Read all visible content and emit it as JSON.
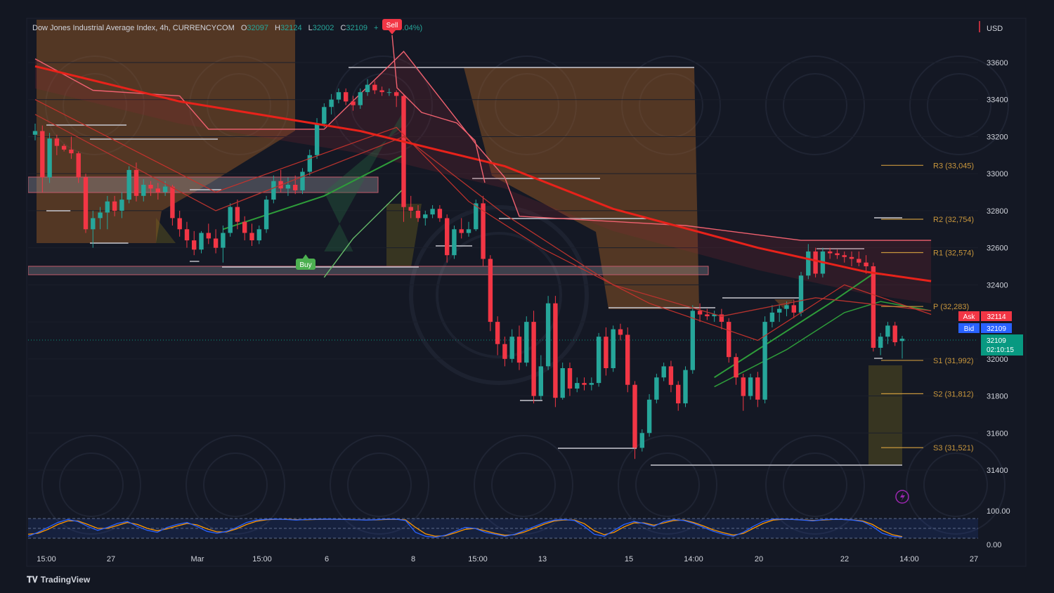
{
  "header": {
    "symbol_text": "Dow Jones Industrial Average Index, 4h, CURRENCYCOM",
    "open_label": "O",
    "open_value": "32097",
    "high_label": "H",
    "high_value": "32124",
    "low_label": "L",
    "low_value": "32002",
    "close_label": "C",
    "close_value": "32109",
    "change_text": "+",
    "change_pct": ".04%)"
  },
  "price_axis": {
    "currency": "USD",
    "tick_labels": [
      "33600",
      "33400",
      "33200",
      "33000",
      "32800",
      "32600",
      "32400",
      "32000",
      "31800",
      "31600",
      "31400"
    ]
  },
  "time_axis": {
    "labels": [
      "15:00",
      "27",
      "Mar",
      "15:00",
      "6",
      "8",
      "15:00",
      "13",
      "15",
      "14:00",
      "20",
      "22",
      "14:00",
      "27"
    ]
  },
  "price_tags": {
    "ask_label": "Ask",
    "ask_value": "32114",
    "bid_label": "Bid",
    "bid_value": "32109",
    "last_value": "32109",
    "countdown": "02:10:15"
  },
  "pivots": [
    {
      "label": "R3 (33,045)",
      "value": 33045
    },
    {
      "label": "R2 (32,754)",
      "value": 32754
    },
    {
      "label": "R1 (32,574)",
      "value": 32574
    },
    {
      "label": "P (32,283)",
      "value": 32283
    },
    {
      "label": "S1 (31,992)",
      "value": 31992
    },
    {
      "label": "S2 (31,812)",
      "value": 31812
    },
    {
      "label": "S3 (31,521)",
      "value": 31521
    }
  ],
  "signals": {
    "sell_label": "Sell",
    "buy_label": "Buy"
  },
  "oscillator": {
    "top_label": "100.00",
    "bottom_label": "0.00"
  },
  "branding": {
    "name": "TradingView"
  },
  "colors": {
    "up": "#26a69a",
    "down": "#f23645",
    "ema_red": "#e8221a",
    "pivot": "#c8963c",
    "bg": "#131722"
  },
  "chart_data": {
    "type": "candlestick",
    "ylim": [
      31300,
      33700
    ],
    "candles": [
      [
        33210,
        33270,
        33180,
        33230
      ],
      [
        33230,
        33260,
        32900,
        32980
      ],
      [
        32980,
        33220,
        32950,
        33190
      ],
      [
        33190,
        33210,
        33100,
        33150
      ],
      [
        33150,
        33160,
        33120,
        33130
      ],
      [
        33130,
        33200,
        33080,
        33110
      ],
      [
        33110,
        33120,
        32950,
        32980
      ],
      [
        32980,
        33000,
        32680,
        32700
      ],
      [
        32700,
        32800,
        32600,
        32760
      ],
      [
        32760,
        32820,
        32700,
        32790
      ],
      [
        32790,
        32880,
        32700,
        32850
      ],
      [
        32850,
        32880,
        32770,
        32800
      ],
      [
        32800,
        32900,
        32760,
        32860
      ],
      [
        32860,
        33040,
        32840,
        33020
      ],
      [
        33020,
        33060,
        32850,
        32880
      ],
      [
        32880,
        32970,
        32850,
        32940
      ],
      [
        32940,
        32960,
        32880,
        32920
      ],
      [
        32920,
        32950,
        32860,
        32900
      ],
      [
        32900,
        32960,
        32880,
        32930
      ],
      [
        32930,
        32940,
        32720,
        32760
      ],
      [
        32760,
        32800,
        32660,
        32700
      ],
      [
        32700,
        32740,
        32600,
        32640
      ],
      [
        32640,
        32690,
        32560,
        32590
      ],
      [
        32590,
        32690,
        32570,
        32680
      ],
      [
        32680,
        32730,
        32620,
        32650
      ],
      [
        32650,
        32700,
        32570,
        32600
      ],
      [
        32600,
        32720,
        32520,
        32680
      ],
      [
        32680,
        32840,
        32660,
        32820
      ],
      [
        32820,
        32860,
        32700,
        32740
      ],
      [
        32740,
        32770,
        32640,
        32680
      ],
      [
        32680,
        32730,
        32610,
        32640
      ],
      [
        32640,
        32720,
        32620,
        32700
      ],
      [
        32700,
        32880,
        32680,
        32860
      ],
      [
        32860,
        32990,
        32840,
        32960
      ],
      [
        32960,
        33020,
        32900,
        32920
      ],
      [
        32920,
        32980,
        32880,
        32940
      ],
      [
        32940,
        32990,
        32890,
        32910
      ],
      [
        32910,
        33030,
        32890,
        33010
      ],
      [
        33010,
        33130,
        32990,
        33100
      ],
      [
        33100,
        33300,
        33080,
        33270
      ],
      [
        33270,
        33380,
        33250,
        33360
      ],
      [
        33360,
        33430,
        33320,
        33400
      ],
      [
        33400,
        33460,
        33380,
        33440
      ],
      [
        33440,
        33460,
        33370,
        33390
      ],
      [
        33390,
        33420,
        33340,
        33370
      ],
      [
        33370,
        33460,
        33350,
        33440
      ],
      [
        33440,
        33510,
        33420,
        33480
      ],
      [
        33480,
        33500,
        33430,
        33450
      ],
      [
        33450,
        33470,
        33420,
        33440
      ],
      [
        33440,
        33460,
        33420,
        33440
      ],
      [
        33440,
        33450,
        33360,
        33420
      ],
      [
        33420,
        33430,
        32740,
        32820
      ],
      [
        32820,
        32880,
        32760,
        32800
      ],
      [
        32800,
        32830,
        32740,
        32760
      ],
      [
        32760,
        32800,
        32720,
        32780
      ],
      [
        32780,
        32830,
        32760,
        32810
      ],
      [
        32810,
        32830,
        32740,
        32760
      ],
      [
        32760,
        32780,
        32520,
        32560
      ],
      [
        32560,
        32720,
        32540,
        32700
      ],
      [
        32700,
        32760,
        32650,
        32680
      ],
      [
        32680,
        32740,
        32660,
        32700
      ],
      [
        32700,
        32860,
        32690,
        32840
      ],
      [
        32840,
        32880,
        32500,
        32540
      ],
      [
        32540,
        32560,
        32150,
        32200
      ],
      [
        32200,
        32230,
        32020,
        32080
      ],
      [
        32080,
        32120,
        31960,
        32000
      ],
      [
        32000,
        32160,
        31980,
        32120
      ],
      [
        32120,
        32180,
        31940,
        31980
      ],
      [
        31980,
        32230,
        31960,
        32200
      ],
      [
        32200,
        32260,
        31760,
        31800
      ],
      [
        31800,
        32020,
        31780,
        31960
      ],
      [
        31960,
        32340,
        31940,
        32300
      ],
      [
        32300,
        32340,
        31740,
        31790
      ],
      [
        31790,
        31980,
        31780,
        31950
      ],
      [
        31950,
        31980,
        31800,
        31840
      ],
      [
        31840,
        31900,
        31820,
        31870
      ],
      [
        31870,
        31900,
        31830,
        31860
      ],
      [
        31860,
        31900,
        31830,
        31870
      ],
      [
        31870,
        32140,
        31850,
        32120
      ],
      [
        32120,
        32170,
        31910,
        31950
      ],
      [
        31950,
        32180,
        31930,
        32160
      ],
      [
        32160,
        32190,
        32100,
        32130
      ],
      [
        32130,
        32170,
        31820,
        31860
      ],
      [
        31860,
        31880,
        31460,
        31520
      ],
      [
        31520,
        31620,
        31500,
        31600
      ],
      [
        31600,
        31810,
        31580,
        31780
      ],
      [
        31780,
        31920,
        31760,
        31900
      ],
      [
        31900,
        31980,
        31880,
        31960
      ],
      [
        31960,
        31990,
        31820,
        31860
      ],
      [
        31860,
        31880,
        31720,
        31760
      ],
      [
        31760,
        31960,
        31740,
        31940
      ],
      [
        31940,
        32290,
        31920,
        32260
      ],
      [
        32260,
        32300,
        32200,
        32240
      ],
      [
        32240,
        32270,
        32210,
        32230
      ],
      [
        32230,
        32260,
        32200,
        32240
      ],
      [
        32240,
        32270,
        32160,
        32200
      ],
      [
        32200,
        32220,
        31980,
        32010
      ],
      [
        32010,
        32030,
        31860,
        31900
      ],
      [
        31900,
        31920,
        31720,
        31800
      ],
      [
        31800,
        31920,
        31780,
        31900
      ],
      [
        31900,
        31930,
        31740,
        31780
      ],
      [
        31780,
        32230,
        31760,
        32200
      ],
      [
        32200,
        32290,
        32170,
        32250
      ],
      [
        32250,
        32290,
        32200,
        32270
      ],
      [
        32270,
        32310,
        32230,
        32290
      ],
      [
        32290,
        32320,
        32220,
        32250
      ],
      [
        32250,
        32470,
        32230,
        32450
      ],
      [
        32450,
        32620,
        32430,
        32580
      ],
      [
        32580,
        32600,
        32440,
        32460
      ],
      [
        32460,
        32600,
        32440,
        32580
      ],
      [
        32580,
        32600,
        32540,
        32570
      ],
      [
        32570,
        32590,
        32540,
        32560
      ],
      [
        32560,
        32580,
        32520,
        32550
      ],
      [
        32550,
        32580,
        32500,
        32540
      ],
      [
        32540,
        32580,
        32500,
        32520
      ],
      [
        32520,
        32560,
        32460,
        32500
      ],
      [
        32500,
        32520,
        32040,
        32060
      ],
      [
        32060,
        32140,
        32020,
        32120
      ],
      [
        32120,
        32200,
        32080,
        32180
      ],
      [
        32180,
        32200,
        32070,
        32090
      ],
      [
        32097,
        32124,
        32002,
        32109
      ]
    ],
    "ema_slow": [
      [
        0,
        33580
      ],
      [
        20,
        33390
      ],
      [
        45,
        33230
      ],
      [
        65,
        33040
      ],
      [
        80,
        32810
      ],
      [
        100,
        32600
      ],
      [
        115,
        32470
      ],
      [
        124,
        32420
      ]
    ],
    "ema_fast": [
      [
        0,
        33400
      ],
      [
        25,
        32900
      ],
      [
        50,
        33250
      ],
      [
        60,
        32850
      ],
      [
        70,
        32600
      ],
      [
        85,
        32300
      ],
      [
        100,
        32100
      ],
      [
        112,
        32400
      ],
      [
        124,
        32240
      ]
    ],
    "ema_mid": [
      [
        0,
        33320
      ],
      [
        25,
        32800
      ],
      [
        51,
        33200
      ],
      [
        65,
        32780
      ],
      [
        80,
        32400
      ],
      [
        95,
        32230
      ],
      [
        108,
        32330
      ],
      [
        124,
        32260
      ]
    ],
    "upper_band": [
      [
        0,
        33620
      ],
      [
        8,
        33450
      ],
      [
        20,
        33420
      ],
      [
        24,
        33240
      ],
      [
        40,
        33240
      ],
      [
        51,
        33660
      ],
      [
        61,
        33160
      ],
      [
        65,
        32980
      ],
      [
        67,
        32770
      ],
      [
        90,
        32720
      ],
      [
        106,
        32640
      ],
      [
        124,
        32640
      ]
    ],
    "green_band": [
      [
        40,
        32580
      ],
      [
        48,
        33140
      ],
      [
        51,
        33340
      ],
      [
        51,
        33260
      ],
      [
        40,
        32900
      ],
      [
        44,
        32580
      ]
    ],
    "green_line": [
      [
        26,
        32700
      ],
      [
        40,
        32880
      ],
      [
        51,
        33100
      ]
    ],
    "lower_line": [
      [
        40,
        32440
      ],
      [
        44,
        32650
      ],
      [
        51,
        32920
      ]
    ],
    "zones": [
      {
        "from": 33060,
        "to": 32960
      },
      {
        "from": 32510,
        "to": 32470
      }
    ],
    "oscillator": {
      "k": [
        10,
        30,
        55,
        80,
        95,
        85,
        60,
        40,
        55,
        75,
        85,
        60,
        40,
        30,
        55,
        70,
        80,
        60,
        35,
        25,
        35,
        55,
        80,
        92,
        96,
        97,
        95,
        92,
        95,
        96,
        97,
        96,
        95,
        94,
        92,
        94,
        97,
        97,
        90,
        30,
        10,
        5,
        15,
        35,
        55,
        50,
        30,
        20,
        10,
        20,
        40,
        60,
        80,
        92,
        95,
        90,
        60,
        20,
        10,
        40,
        70,
        85,
        75,
        60,
        85,
        95,
        90,
        75,
        55,
        35,
        20,
        10,
        30,
        60,
        85,
        97,
        97,
        95,
        92,
        88,
        94,
        96,
        95,
        92,
        85,
        60,
        25,
        10,
        5
      ],
      "d": [
        20,
        25,
        45,
        70,
        88,
        88,
        70,
        50,
        50,
        65,
        80,
        70,
        50,
        38,
        48,
        62,
        75,
        68,
        48,
        32,
        32,
        48,
        70,
        86,
        94,
        96,
        96,
        94,
        94,
        95,
        96,
        96,
        95,
        94,
        93,
        93,
        95,
        96,
        93,
        55,
        22,
        10,
        12,
        28,
        45,
        50,
        38,
        25,
        15,
        18,
        32,
        52,
        72,
        88,
        93,
        92,
        74,
        38,
        18,
        30,
        58,
        78,
        78,
        66,
        78,
        90,
        92,
        80,
        62,
        42,
        28,
        16,
        24,
        50,
        75,
        92,
        96,
        95,
        93,
        90,
        92,
        95,
        95,
        93,
        88,
        70,
        40,
        18,
        8
      ]
    }
  }
}
